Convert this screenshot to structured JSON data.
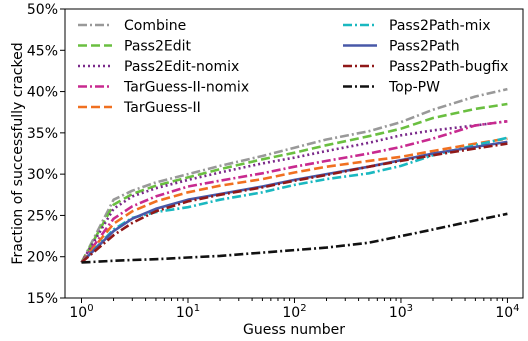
{
  "chart_data": {
    "type": "line",
    "xlabel": "Guess number",
    "ylabel": "Fraction of successfully cracked",
    "xscale": "log",
    "xlim": [
      0.7,
      14000
    ],
    "ylim": [
      15,
      50
    ],
    "x_ticks": [
      1,
      10,
      100,
      1000,
      10000
    ],
    "x_tick_labels": [
      {
        "base": "10",
        "exp": "0"
      },
      {
        "base": "10",
        "exp": "1"
      },
      {
        "base": "10",
        "exp": "2"
      },
      {
        "base": "10",
        "exp": "3"
      },
      {
        "base": "10",
        "exp": "4"
      }
    ],
    "y_ticks": [
      15,
      20,
      25,
      30,
      35,
      40,
      45,
      50
    ],
    "y_tick_labels": [
      "15%",
      "20%",
      "25%",
      "30%",
      "35%",
      "40%",
      "45%",
      "50%"
    ],
    "grid": false,
    "legend_position": "top",
    "x": [
      1,
      2,
      3,
      5,
      10,
      20,
      50,
      100,
      200,
      500,
      1000,
      2000,
      5000,
      10000
    ],
    "series": [
      {
        "name": "Combine",
        "color": "#999999",
        "dash": "dashdot",
        "values": [
          19.3,
          26.9,
          28.0,
          29.0,
          30.0,
          31.0,
          32.2,
          33.2,
          34.2,
          35.2,
          36.3,
          37.8,
          39.4,
          40.3
        ]
      },
      {
        "name": "Pass2Edit",
        "color": "#6abf40",
        "dash": "dashed",
        "values": [
          19.3,
          26.3,
          27.6,
          28.6,
          29.6,
          30.6,
          31.8,
          32.6,
          33.5,
          34.6,
          35.5,
          36.8,
          37.9,
          38.5
        ]
      },
      {
        "name": "Pass2Edit-nomix",
        "color": "#7a2a8a",
        "dash": "dotted",
        "values": [
          19.3,
          25.8,
          27.3,
          28.3,
          29.3,
          30.2,
          31.3,
          32.0,
          32.8,
          33.8,
          34.7,
          35.3,
          35.9,
          36.4
        ]
      },
      {
        "name": "TarGuess-II-nomix",
        "color": "#c82a8f",
        "dash": "dashdot",
        "values": [
          19.3,
          24.6,
          26.1,
          27.3,
          28.5,
          29.2,
          30.1,
          30.9,
          31.6,
          32.5,
          33.3,
          34.3,
          35.9,
          36.4
        ]
      },
      {
        "name": "TarGuess-II",
        "color": "#f07020",
        "dash": "dashed",
        "values": [
          19.3,
          24.0,
          25.5,
          26.7,
          27.8,
          28.6,
          29.4,
          30.2,
          30.9,
          31.6,
          32.1,
          32.8,
          33.7,
          34.3
        ]
      },
      {
        "name": "Pass2Path-mix",
        "color": "#1ab8c0",
        "dash": "dashdot",
        "values": [
          19.3,
          23.3,
          24.7,
          25.4,
          26.0,
          26.9,
          27.8,
          28.7,
          29.4,
          30.1,
          31.0,
          32.3,
          33.5,
          34.4
        ]
      },
      {
        "name": "Pass2Path",
        "color": "#4858a8",
        "dash": "solid",
        "values": [
          19.3,
          23.1,
          24.6,
          25.8,
          26.9,
          27.6,
          28.5,
          29.3,
          30.0,
          30.9,
          31.7,
          32.5,
          33.3,
          33.9
        ]
      },
      {
        "name": "Pass2Path-bugfix",
        "color": "#901818",
        "dash": "dashdot",
        "values": [
          19.3,
          22.6,
          24.1,
          25.5,
          26.7,
          27.5,
          28.4,
          29.2,
          29.9,
          30.9,
          31.6,
          32.3,
          33.1,
          33.7
        ]
      },
      {
        "name": "Top-PW",
        "color": "#111111",
        "dash": "dashdot",
        "values": [
          19.3,
          19.5,
          19.6,
          19.7,
          19.9,
          20.1,
          20.5,
          20.8,
          21.1,
          21.7,
          22.5,
          23.3,
          24.4,
          25.2
        ]
      }
    ]
  }
}
